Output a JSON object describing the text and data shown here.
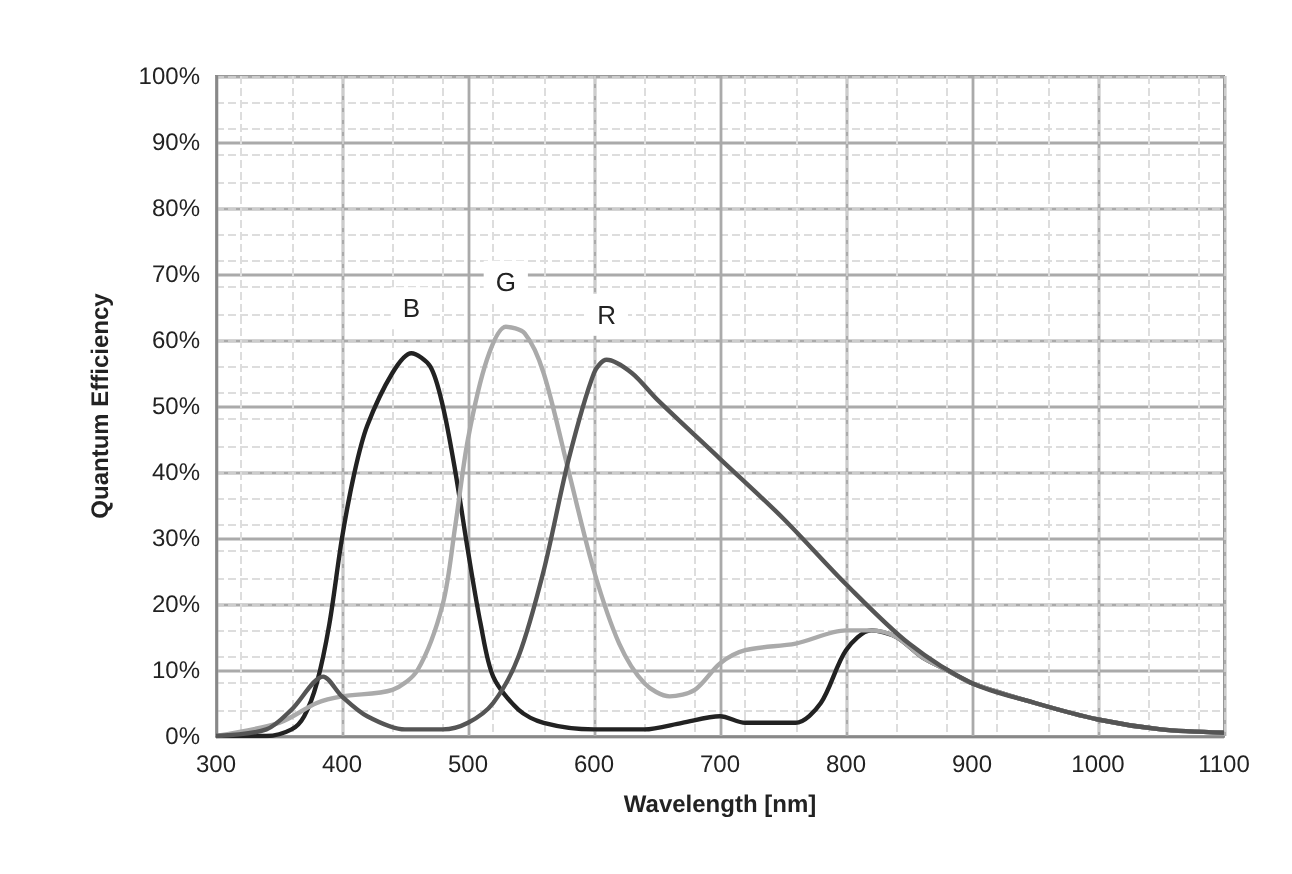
{
  "chart_data": {
    "type": "line",
    "xlabel": "Wavelength [nm]",
    "ylabel": "Quantum Efficiency",
    "xlim": [
      300,
      1100
    ],
    "xticks": [
      300,
      400,
      500,
      600,
      700,
      800,
      900,
      1000,
      1100
    ],
    "ylim": [
      0,
      100
    ],
    "yticks": [
      {
        "value": 0,
        "label": "0%"
      },
      {
        "value": 10,
        "label": "10%"
      },
      {
        "value": 20,
        "label": "20%"
      },
      {
        "value": 30,
        "label": "30%"
      },
      {
        "value": 40,
        "label": "40%"
      },
      {
        "value": 50,
        "label": "50%"
      },
      {
        "value": 60,
        "label": "60%"
      },
      {
        "value": 70,
        "label": "70%"
      },
      {
        "value": 80,
        "label": "80%"
      },
      {
        "value": 90,
        "label": "90%"
      },
      {
        "value": 100,
        "label": "100%"
      }
    ],
    "grid": true,
    "legend": false,
    "marker": "none",
    "line_style": "solid",
    "series": [
      {
        "name": "B",
        "color": "#222222",
        "x": [
          300,
          340,
          360,
          370,
          380,
          390,
          400,
          410,
          420,
          440,
          455,
          470,
          480,
          490,
          500,
          510,
          520,
          540,
          560,
          600,
          640,
          670,
          700,
          720,
          760,
          780,
          800,
          820,
          840,
          860,
          880,
          900,
          950,
          1000,
          1050,
          1100
        ],
        "values": [
          0,
          0,
          1,
          3,
          8,
          17,
          30,
          40,
          47,
          55,
          58,
          56,
          50,
          40,
          28,
          17,
          9,
          4,
          2,
          1,
          1,
          2,
          3,
          2,
          2,
          5,
          13,
          16,
          15,
          12,
          10,
          8,
          5,
          2.5,
          1,
          0.5
        ]
      },
      {
        "name": "G",
        "color": "#aaaaaa",
        "x": [
          300,
          350,
          380,
          400,
          440,
          460,
          480,
          490,
          500,
          515,
          530,
          545,
          560,
          580,
          600,
          620,
          640,
          660,
          680,
          700,
          720,
          760,
          800,
          820,
          840,
          860,
          880,
          900,
          950,
          1000,
          1050,
          1100
        ],
        "values": [
          0,
          2,
          5,
          6,
          7,
          10,
          20,
          32,
          45,
          57,
          62,
          61,
          55,
          40,
          25,
          14,
          8,
          6,
          7,
          11,
          13,
          14,
          16,
          16,
          15,
          12,
          10,
          8,
          5,
          2.5,
          1,
          0.5
        ]
      },
      {
        "name": "R",
        "color": "#555555",
        "x": [
          300,
          340,
          360,
          385,
          400,
          420,
          450,
          480,
          500,
          520,
          540,
          560,
          580,
          600,
          610,
          630,
          650,
          700,
          750,
          800,
          850,
          900,
          950,
          1000,
          1050,
          1100
        ],
        "values": [
          0,
          1,
          4,
          9,
          6,
          3,
          1,
          1,
          2,
          5,
          12,
          25,
          42,
          55,
          57,
          55,
          51,
          42,
          33,
          23,
          14,
          8,
          5,
          2.5,
          1,
          0.5
        ]
      }
    ]
  }
}
